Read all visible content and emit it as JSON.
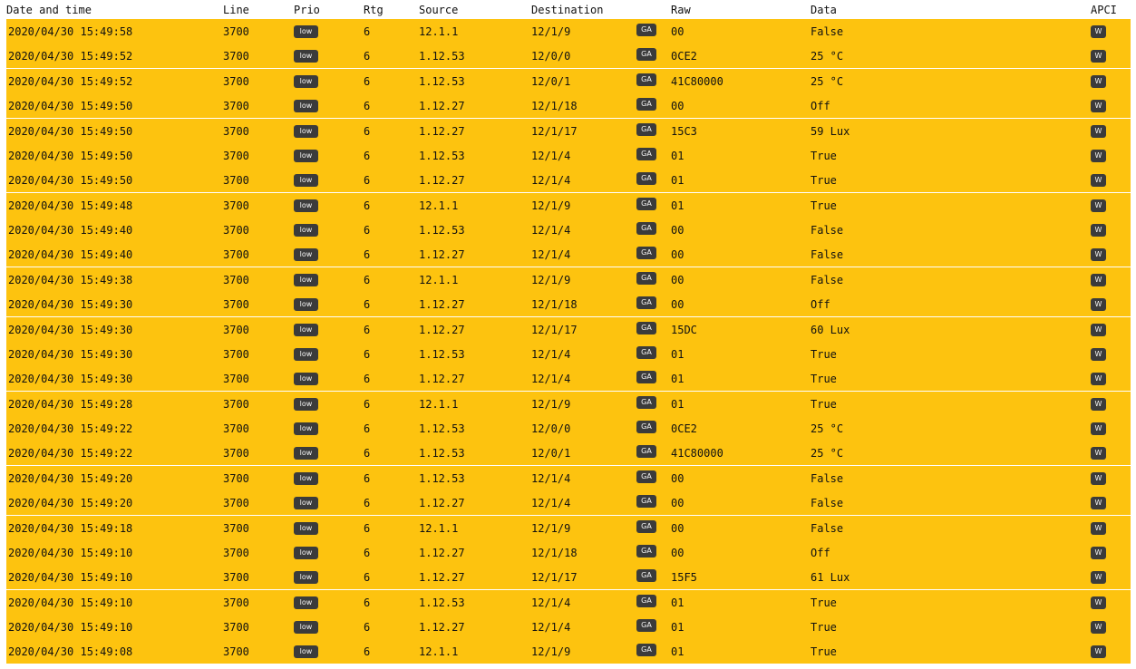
{
  "columns": {
    "date": "Date and time",
    "line": "Line",
    "prio": "Prio",
    "rtg": "Rtg",
    "source": "Source",
    "destination": "Destination",
    "raw": "Raw",
    "data": "Data",
    "apci": "APCI"
  },
  "colors": {
    "row_background": "#fdc30f",
    "badge_background": "#3b3b3b"
  },
  "rows": [
    {
      "date": "2020/04/30 15:49:58",
      "line": "3700",
      "prio": "low",
      "rtg": "6",
      "source": "12.1.1",
      "destination": "12/1/9",
      "type": "GA",
      "raw": "00",
      "data": "False",
      "apci": "W"
    },
    {
      "date": "2020/04/30 15:49:52",
      "line": "3700",
      "prio": "low",
      "rtg": "6",
      "source": "1.12.53",
      "destination": "12/0/0",
      "type": "GA",
      "raw": "0CE2",
      "data": "25 °C",
      "apci": "W"
    },
    {
      "date": "2020/04/30 15:49:52",
      "line": "3700",
      "prio": "low",
      "rtg": "6",
      "source": "1.12.53",
      "destination": "12/0/1",
      "type": "GA",
      "raw": "41C80000",
      "data": "25 °C",
      "apci": "W"
    },
    {
      "date": "2020/04/30 15:49:50",
      "line": "3700",
      "prio": "low",
      "rtg": "6",
      "source": "1.12.27",
      "destination": "12/1/18",
      "type": "GA",
      "raw": "00",
      "data": "Off",
      "apci": "W"
    },
    {
      "date": "2020/04/30 15:49:50",
      "line": "3700",
      "prio": "low",
      "rtg": "6",
      "source": "1.12.27",
      "destination": "12/1/17",
      "type": "GA",
      "raw": "15C3",
      "data": "59 Lux",
      "apci": "W"
    },
    {
      "date": "2020/04/30 15:49:50",
      "line": "3700",
      "prio": "low",
      "rtg": "6",
      "source": "1.12.53",
      "destination": "12/1/4",
      "type": "GA",
      "raw": "01",
      "data": "True",
      "apci": "W"
    },
    {
      "date": "2020/04/30 15:49:50",
      "line": "3700",
      "prio": "low",
      "rtg": "6",
      "source": "1.12.27",
      "destination": "12/1/4",
      "type": "GA",
      "raw": "01",
      "data": "True",
      "apci": "W"
    },
    {
      "date": "2020/04/30 15:49:48",
      "line": "3700",
      "prio": "low",
      "rtg": "6",
      "source": "12.1.1",
      "destination": "12/1/9",
      "type": "GA",
      "raw": "01",
      "data": "True",
      "apci": "W"
    },
    {
      "date": "2020/04/30 15:49:40",
      "line": "3700",
      "prio": "low",
      "rtg": "6",
      "source": "1.12.53",
      "destination": "12/1/4",
      "type": "GA",
      "raw": "00",
      "data": "False",
      "apci": "W"
    },
    {
      "date": "2020/04/30 15:49:40",
      "line": "3700",
      "prio": "low",
      "rtg": "6",
      "source": "1.12.27",
      "destination": "12/1/4",
      "type": "GA",
      "raw": "00",
      "data": "False",
      "apci": "W"
    },
    {
      "date": "2020/04/30 15:49:38",
      "line": "3700",
      "prio": "low",
      "rtg": "6",
      "source": "12.1.1",
      "destination": "12/1/9",
      "type": "GA",
      "raw": "00",
      "data": "False",
      "apci": "W"
    },
    {
      "date": "2020/04/30 15:49:30",
      "line": "3700",
      "prio": "low",
      "rtg": "6",
      "source": "1.12.27",
      "destination": "12/1/18",
      "type": "GA",
      "raw": "00",
      "data": "Off",
      "apci": "W"
    },
    {
      "date": "2020/04/30 15:49:30",
      "line": "3700",
      "prio": "low",
      "rtg": "6",
      "source": "1.12.27",
      "destination": "12/1/17",
      "type": "GA",
      "raw": "15DC",
      "data": "60 Lux",
      "apci": "W"
    },
    {
      "date": "2020/04/30 15:49:30",
      "line": "3700",
      "prio": "low",
      "rtg": "6",
      "source": "1.12.53",
      "destination": "12/1/4",
      "type": "GA",
      "raw": "01",
      "data": "True",
      "apci": "W"
    },
    {
      "date": "2020/04/30 15:49:30",
      "line": "3700",
      "prio": "low",
      "rtg": "6",
      "source": "1.12.27",
      "destination": "12/1/4",
      "type": "GA",
      "raw": "01",
      "data": "True",
      "apci": "W"
    },
    {
      "date": "2020/04/30 15:49:28",
      "line": "3700",
      "prio": "low",
      "rtg": "6",
      "source": "12.1.1",
      "destination": "12/1/9",
      "type": "GA",
      "raw": "01",
      "data": "True",
      "apci": "W"
    },
    {
      "date": "2020/04/30 15:49:22",
      "line": "3700",
      "prio": "low",
      "rtg": "6",
      "source": "1.12.53",
      "destination": "12/0/0",
      "type": "GA",
      "raw": "0CE2",
      "data": "25 °C",
      "apci": "W"
    },
    {
      "date": "2020/04/30 15:49:22",
      "line": "3700",
      "prio": "low",
      "rtg": "6",
      "source": "1.12.53",
      "destination": "12/0/1",
      "type": "GA",
      "raw": "41C80000",
      "data": "25 °C",
      "apci": "W"
    },
    {
      "date": "2020/04/30 15:49:20",
      "line": "3700",
      "prio": "low",
      "rtg": "6",
      "source": "1.12.53",
      "destination": "12/1/4",
      "type": "GA",
      "raw": "00",
      "data": "False",
      "apci": "W"
    },
    {
      "date": "2020/04/30 15:49:20",
      "line": "3700",
      "prio": "low",
      "rtg": "6",
      "source": "1.12.27",
      "destination": "12/1/4",
      "type": "GA",
      "raw": "00",
      "data": "False",
      "apci": "W"
    },
    {
      "date": "2020/04/30 15:49:18",
      "line": "3700",
      "prio": "low",
      "rtg": "6",
      "source": "12.1.1",
      "destination": "12/1/9",
      "type": "GA",
      "raw": "00",
      "data": "False",
      "apci": "W"
    },
    {
      "date": "2020/04/30 15:49:10",
      "line": "3700",
      "prio": "low",
      "rtg": "6",
      "source": "1.12.27",
      "destination": "12/1/18",
      "type": "GA",
      "raw": "00",
      "data": "Off",
      "apci": "W"
    },
    {
      "date": "2020/04/30 15:49:10",
      "line": "3700",
      "prio": "low",
      "rtg": "6",
      "source": "1.12.27",
      "destination": "12/1/17",
      "type": "GA",
      "raw": "15F5",
      "data": "61 Lux",
      "apci": "W"
    },
    {
      "date": "2020/04/30 15:49:10",
      "line": "3700",
      "prio": "low",
      "rtg": "6",
      "source": "1.12.53",
      "destination": "12/1/4",
      "type": "GA",
      "raw": "01",
      "data": "True",
      "apci": "W"
    },
    {
      "date": "2020/04/30 15:49:10",
      "line": "3700",
      "prio": "low",
      "rtg": "6",
      "source": "1.12.27",
      "destination": "12/1/4",
      "type": "GA",
      "raw": "01",
      "data": "True",
      "apci": "W"
    },
    {
      "date": "2020/04/30 15:49:08",
      "line": "3700",
      "prio": "low",
      "rtg": "6",
      "source": "12.1.1",
      "destination": "12/1/9",
      "type": "GA",
      "raw": "01",
      "data": "True",
      "apci": "W"
    }
  ]
}
